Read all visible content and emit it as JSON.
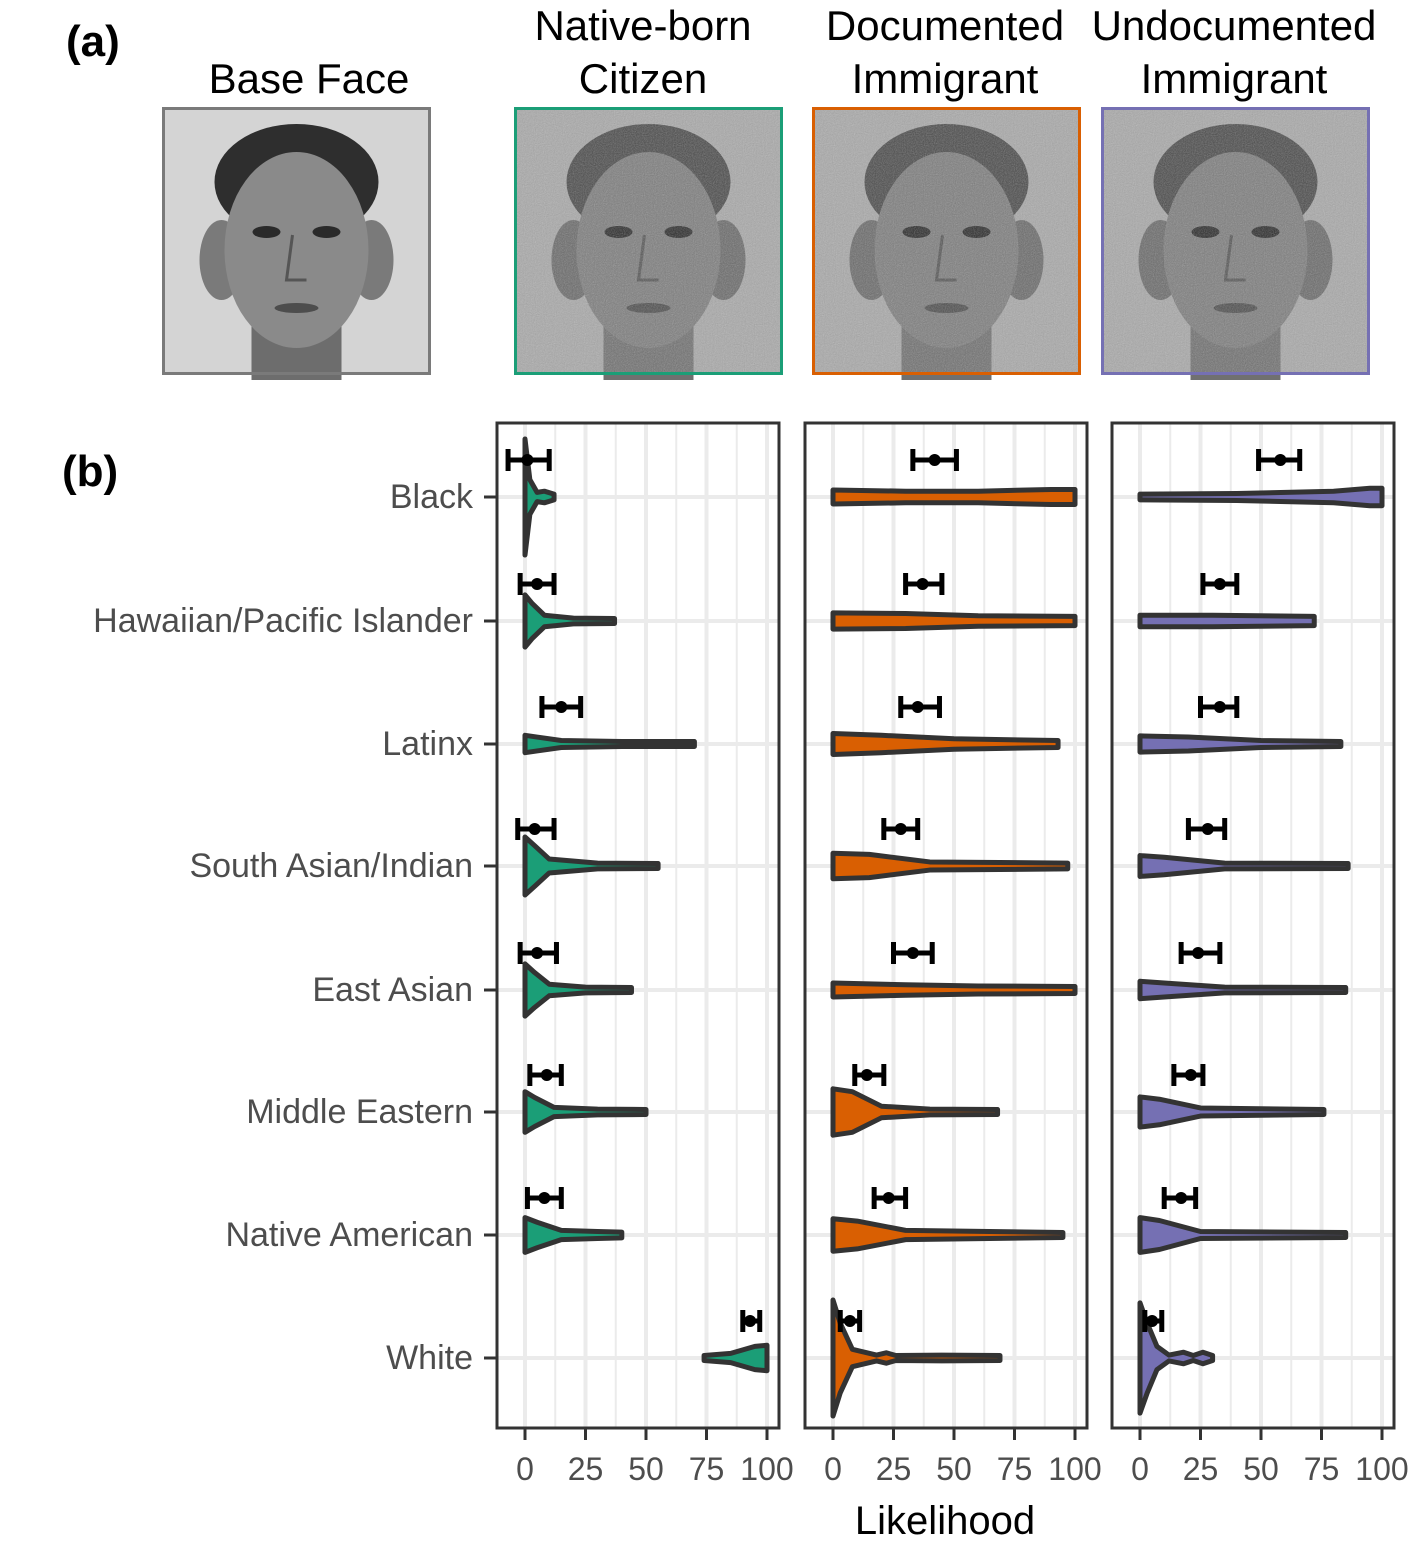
{
  "panel_a": {
    "label": "(a)",
    "faces": [
      {
        "title_lines": [
          "Base Face"
        ],
        "border_color": "#7a7a7a",
        "tone": "base"
      },
      {
        "title_lines": [
          "Native-born",
          "Citizen"
        ],
        "border_color": "#1b9e77",
        "tone": "ci"
      },
      {
        "title_lines": [
          "Documented",
          "Immigrant"
        ],
        "border_color": "#d95f02",
        "tone": "ci"
      },
      {
        "title_lines": [
          "Undocumented",
          "Immigrant"
        ],
        "border_color": "#7570b3",
        "tone": "ci"
      }
    ]
  },
  "chart_data": {
    "type": "violin",
    "panel_label": "(b)",
    "xlabel": "Likelihood",
    "xlim": [
      -12,
      105
    ],
    "xticks": [
      0,
      25,
      50,
      75,
      100
    ],
    "grid": true,
    "categories": [
      "Black",
      "Hawaiian/Pacific Islander",
      "Latinx",
      "South Asian/Indian",
      "East Asian",
      "Middle Eastern",
      "Native American",
      "White"
    ],
    "facets": [
      {
        "name": "Native-born Citizen",
        "color": "#1b9e77",
        "mean": [
          1,
          5,
          15,
          4,
          5,
          9,
          8,
          93
        ],
        "ci": [
          [
            -7,
            10
          ],
          [
            -2,
            12
          ],
          [
            7,
            23
          ],
          [
            -3,
            12
          ],
          [
            -2,
            13
          ],
          [
            2,
            15
          ],
          [
            1,
            15
          ],
          [
            90,
            97
          ]
        ],
        "density": [
          [
            [
              0,
              1
            ],
            [
              2,
              0.3
            ],
            [
              5,
              0.08
            ],
            [
              8,
              0.1
            ],
            [
              12,
              0.05
            ]
          ],
          [
            [
              0,
              0.45
            ],
            [
              3,
              0.3
            ],
            [
              8,
              0.1
            ],
            [
              20,
              0.05
            ],
            [
              37,
              0.04
            ]
          ],
          [
            [
              0,
              0.15
            ],
            [
              5,
              0.12
            ],
            [
              15,
              0.06
            ],
            [
              40,
              0.04
            ],
            [
              70,
              0.03
            ]
          ],
          [
            [
              0,
              0.5
            ],
            [
              4,
              0.35
            ],
            [
              10,
              0.12
            ],
            [
              30,
              0.05
            ],
            [
              55,
              0.03
            ]
          ],
          [
            [
              0,
              0.45
            ],
            [
              4,
              0.3
            ],
            [
              10,
              0.1
            ],
            [
              25,
              0.05
            ],
            [
              44,
              0.03
            ]
          ],
          [
            [
              0,
              0.35
            ],
            [
              4,
              0.25
            ],
            [
              12,
              0.08
            ],
            [
              30,
              0.05
            ],
            [
              50,
              0.03
            ]
          ],
          [
            [
              0,
              0.3
            ],
            [
              5,
              0.22
            ],
            [
              15,
              0.08
            ],
            [
              30,
              0.06
            ],
            [
              40,
              0.05
            ]
          ],
          [
            [
              74,
              0.04
            ],
            [
              85,
              0.08
            ],
            [
              95,
              0.2
            ],
            [
              100,
              0.22
            ]
          ]
        ]
      },
      {
        "name": "Documented Immigrant",
        "color": "#d95f02",
        "mean": [
          42,
          37,
          35,
          28,
          33,
          14,
          23,
          7
        ],
        "ci": [
          [
            33,
            51
          ],
          [
            30,
            45
          ],
          [
            28,
            44
          ],
          [
            21,
            35
          ],
          [
            25,
            41
          ],
          [
            9,
            21
          ],
          [
            17,
            30
          ],
          [
            3,
            11
          ]
        ],
        "density": [
          [
            [
              0,
              0.12
            ],
            [
              30,
              0.1
            ],
            [
              60,
              0.1
            ],
            [
              90,
              0.13
            ],
            [
              100,
              0.13
            ]
          ],
          [
            [
              0,
              0.14
            ],
            [
              30,
              0.13
            ],
            [
              60,
              0.09
            ],
            [
              100,
              0.08
            ]
          ],
          [
            [
              0,
              0.18
            ],
            [
              20,
              0.15
            ],
            [
              50,
              0.09
            ],
            [
              93,
              0.06
            ]
          ],
          [
            [
              0,
              0.22
            ],
            [
              15,
              0.2
            ],
            [
              40,
              0.07
            ],
            [
              97,
              0.05
            ]
          ],
          [
            [
              0,
              0.12
            ],
            [
              30,
              0.09
            ],
            [
              60,
              0.07
            ],
            [
              100,
              0.06
            ]
          ],
          [
            [
              0,
              0.4
            ],
            [
              8,
              0.35
            ],
            [
              20,
              0.1
            ],
            [
              40,
              0.05
            ],
            [
              68,
              0.04
            ]
          ],
          [
            [
              0,
              0.28
            ],
            [
              10,
              0.24
            ],
            [
              30,
              0.08
            ],
            [
              95,
              0.04
            ]
          ],
          [
            [
              0,
              1
            ],
            [
              3,
              0.6
            ],
            [
              8,
              0.15
            ],
            [
              18,
              0.05
            ],
            [
              22,
              0.09
            ],
            [
              26,
              0.04
            ],
            [
              45,
              0.05
            ],
            [
              69,
              0.04
            ]
          ]
        ]
      },
      {
        "name": "Undocumented Immigrant",
        "color": "#7570b3",
        "mean": [
          58,
          33,
          33,
          28,
          24,
          21,
          17,
          5
        ],
        "ci": [
          [
            49,
            66
          ],
          [
            26,
            40
          ],
          [
            25,
            40
          ],
          [
            20,
            35
          ],
          [
            17,
            33
          ],
          [
            14,
            26
          ],
          [
            10,
            23
          ],
          [
            2,
            9
          ]
        ],
        "density": [
          [
            [
              0,
              0.05
            ],
            [
              40,
              0.06
            ],
            [
              80,
              0.1
            ],
            [
              95,
              0.15
            ],
            [
              100,
              0.15
            ]
          ],
          [
            [
              0,
              0.1
            ],
            [
              30,
              0.1
            ],
            [
              72,
              0.08
            ]
          ],
          [
            [
              0,
              0.14
            ],
            [
              20,
              0.12
            ],
            [
              50,
              0.06
            ],
            [
              83,
              0.04
            ]
          ],
          [
            [
              0,
              0.18
            ],
            [
              10,
              0.15
            ],
            [
              35,
              0.05
            ],
            [
              86,
              0.03
            ]
          ],
          [
            [
              0,
              0.15
            ],
            [
              10,
              0.12
            ],
            [
              35,
              0.05
            ],
            [
              85,
              0.03
            ]
          ],
          [
            [
              0,
              0.26
            ],
            [
              8,
              0.22
            ],
            [
              25,
              0.07
            ],
            [
              76,
              0.04
            ]
          ],
          [
            [
              0,
              0.3
            ],
            [
              8,
              0.25
            ],
            [
              25,
              0.06
            ],
            [
              85,
              0.03
            ]
          ],
          [
            [
              0,
              0.95
            ],
            [
              3,
              0.6
            ],
            [
              7,
              0.2
            ],
            [
              12,
              0.05
            ],
            [
              18,
              0.1
            ],
            [
              22,
              0.04
            ],
            [
              26,
              0.1
            ],
            [
              30,
              0.04
            ]
          ]
        ]
      }
    ]
  }
}
